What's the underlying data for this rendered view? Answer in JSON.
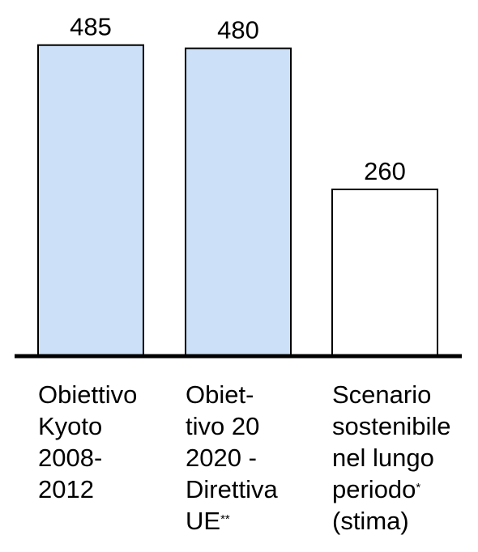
{
  "chart_data": {
    "type": "bar",
    "title": "",
    "xlabel": "",
    "ylabel": "",
    "ylim": [
      0,
      520
    ],
    "grid": false,
    "legend": "none",
    "categories": [
      {
        "lines": [
          "Obiettivo",
          "Kyoto",
          "2008-",
          "2012"
        ],
        "note": ""
      },
      {
        "lines": [
          "Obiet-",
          "tivo 20",
          "2020 -",
          "Direttiva",
          "UE"
        ],
        "note": "**"
      },
      {
        "lines": [
          "Scenario",
          "sostenibile",
          "nel lungo",
          "periodo",
          "(stima)"
        ],
        "note": "*"
      }
    ],
    "values": [
      485,
      480,
      260
    ],
    "value_labels": [
      "485",
      "480",
      "260"
    ],
    "colors": [
      "#cce0f8",
      "#cce0f8",
      "#ffffff"
    ],
    "bar_stroke": "#000000",
    "axis_color": "#000000"
  }
}
